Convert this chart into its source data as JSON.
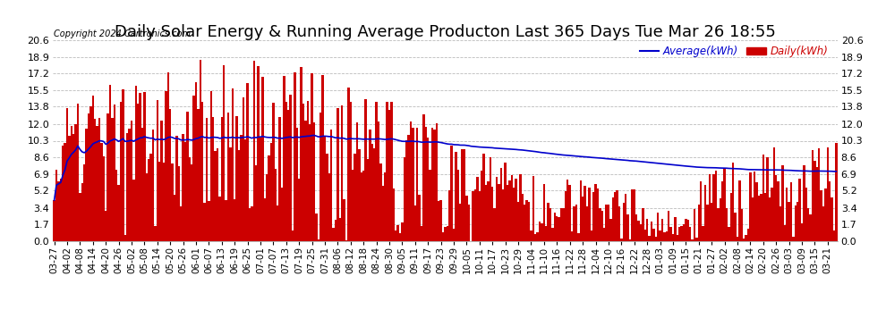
{
  "title": "Daily Solar Energy & Running Average Producton Last 365 Days Tue Mar 26 18:55",
  "copyright": "Copyright 2024 Cartronics.com",
  "legend_average": "Average(kWh)",
  "legend_daily": "Daily(kWh)",
  "bar_color": "#cc0000",
  "bar_edge_color": "#cc0000",
  "avg_line_color": "#0000cc",
  "yticks": [
    0.0,
    1.7,
    3.4,
    5.2,
    6.9,
    8.6,
    10.3,
    12.0,
    13.8,
    15.5,
    17.2,
    18.9,
    20.6
  ],
  "ylim": [
    0.0,
    20.6
  ],
  "background_color": "#ffffff",
  "grid_color": "#bbbbbb",
  "title_fontsize": 13,
  "tick_fontsize": 8.0,
  "figsize": [
    9.9,
    3.75
  ],
  "dpi": 100
}
